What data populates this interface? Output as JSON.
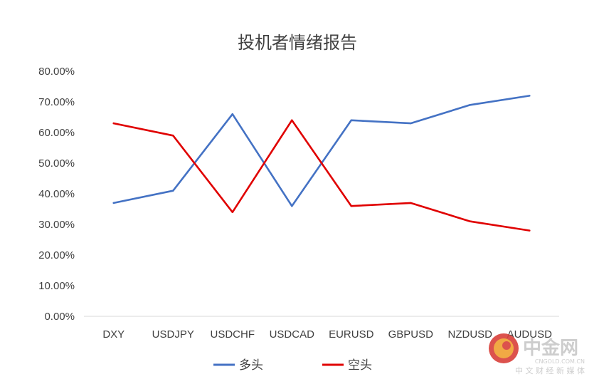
{
  "chart_data": {
    "type": "line",
    "title": "投机者情绪报告",
    "categories": [
      "DXY",
      "USDJPY",
      "USDCHF",
      "USDCAD",
      "EURUSD",
      "GBPUSD",
      "NZDUSD",
      "AUDUSD"
    ],
    "series": [
      {
        "name": "多头",
        "color": "#4472C4",
        "values": [
          37.0,
          41.0,
          66.0,
          36.0,
          64.0,
          63.0,
          69.0,
          72.0
        ]
      },
      {
        "name": "空头",
        "color": "#E00000",
        "values": [
          63.0,
          59.0,
          34.0,
          64.0,
          36.0,
          37.0,
          31.0,
          28.0
        ]
      }
    ],
    "yticks": [
      "0.00%",
      "10.00%",
      "20.00%",
      "30.00%",
      "40.00%",
      "50.00%",
      "60.00%",
      "70.00%",
      "80.00%"
    ],
    "ylim": [
      0,
      80
    ],
    "xlabel": "",
    "ylabel": "",
    "grid": false,
    "legend_position": "bottom"
  },
  "watermark": {
    "brand": "中金网",
    "domain": "CNGOLD.COM.CN",
    "tagline": "中 文 财 经 新 媒 体",
    "colors": {
      "brand_red": "#D9403A",
      "brand_orange": "#F0A030",
      "text_gray": "#C8C8C8"
    }
  }
}
